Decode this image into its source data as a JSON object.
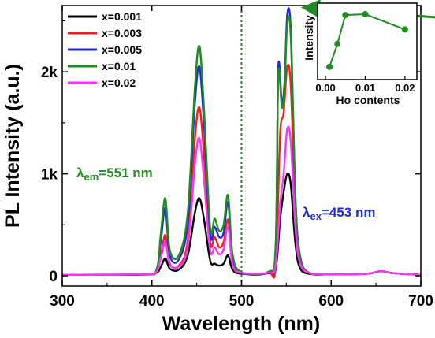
{
  "chart_data": [
    {
      "type": "line",
      "xlabel": "Wavelength (nm)",
      "ylabel": "PL Intensity (a.u.)",
      "xlim": [
        300,
        700
      ],
      "ylim": [
        -100,
        2650
      ],
      "x_ticks": [
        300,
        400,
        500,
        600,
        700
      ],
      "x_tick_labels": [
        "300",
        "400",
        "500",
        "600",
        "700"
      ],
      "y_ticks": [
        0,
        1000,
        2000
      ],
      "y_tick_labels": [
        "0",
        "1k",
        "2k"
      ],
      "divider_x": 500,
      "legend_position": "top-left",
      "annotations": {
        "em": {
          "prefix": "λ",
          "sub": "em",
          "text": "=551 nm",
          "color": "#1e8c1e"
        },
        "ex": {
          "prefix": "λ",
          "sub": "ex",
          "text": "=453 nm",
          "color": "#1c2bd4"
        }
      },
      "series": [
        {
          "name": "x=0.001",
          "color": "#000000",
          "x": [
            300,
            390,
            405,
            410,
            415,
            420,
            430,
            440,
            448,
            453,
            458,
            465,
            470,
            475,
            480,
            485,
            490,
            500,
            530,
            538,
            543,
            547,
            551,
            555,
            560,
            565,
            575,
            600,
            640,
            655,
            670,
            700
          ],
          "y": [
            10,
            12,
            30,
            90,
            170,
            70,
            60,
            200,
            620,
            760,
            560,
            150,
            120,
            100,
            120,
            200,
            60,
            20,
            25,
            60,
            550,
            820,
            1000,
            890,
            320,
            80,
            20,
            15,
            20,
            45,
            25,
            10
          ]
        },
        {
          "name": "x=0.003",
          "color": "#ff1a1a",
          "x": [
            300,
            390,
            405,
            410,
            415,
            420,
            430,
            440,
            448,
            453,
            458,
            465,
            470,
            475,
            480,
            485,
            490,
            500,
            530,
            538,
            543,
            547,
            551,
            555,
            560,
            565,
            575,
            600,
            640,
            655,
            670,
            700
          ],
          "y": [
            10,
            15,
            40,
            200,
            400,
            120,
            100,
            350,
            1350,
            1650,
            1200,
            330,
            380,
            280,
            330,
            550,
            140,
            30,
            30,
            100,
            1380,
            1600,
            2050,
            1850,
            650,
            180,
            30,
            15,
            20,
            45,
            25,
            10
          ]
        },
        {
          "name": "x=0.005",
          "color": "#1c2bd4",
          "x": [
            300,
            390,
            405,
            410,
            415,
            420,
            430,
            440,
            448,
            453,
            458,
            465,
            470,
            475,
            480,
            485,
            490,
            500,
            530,
            538,
            541,
            545,
            548,
            551,
            555,
            560,
            565,
            575,
            600,
            640,
            655,
            670,
            700
          ],
          "y": [
            10,
            15,
            50,
            350,
            660,
            200,
            160,
            520,
            1700,
            2050,
            1500,
            410,
            480,
            380,
            420,
            720,
            190,
            30,
            35,
            250,
            2040,
            1700,
            1900,
            2560,
            2400,
            800,
            210,
            30,
            15,
            20,
            45,
            25,
            10
          ]
        },
        {
          "name": "x=0.01",
          "color": "#1e8c1e",
          "x": [
            300,
            390,
            405,
            410,
            415,
            420,
            430,
            440,
            448,
            453,
            458,
            465,
            470,
            475,
            480,
            485,
            490,
            500,
            530,
            538,
            541,
            545,
            548,
            551,
            555,
            560,
            565,
            575,
            600,
            640,
            655,
            670,
            700
          ],
          "y": [
            10,
            15,
            60,
            420,
            760,
            250,
            200,
            620,
            1850,
            2250,
            1650,
            470,
            560,
            440,
            500,
            790,
            210,
            35,
            40,
            280,
            1980,
            1650,
            1850,
            2480,
            2330,
            780,
            200,
            30,
            15,
            20,
            45,
            25,
            10
          ]
        },
        {
          "name": "x=0.02",
          "color": "#ff33ff",
          "x": [
            300,
            390,
            405,
            410,
            415,
            420,
            430,
            440,
            448,
            453,
            458,
            465,
            470,
            475,
            480,
            485,
            490,
            500,
            530,
            538,
            543,
            547,
            551,
            555,
            560,
            565,
            575,
            600,
            640,
            655,
            670,
            700
          ],
          "y": [
            10,
            15,
            40,
            180,
            330,
            110,
            90,
            280,
            1100,
            1350,
            950,
            250,
            280,
            210,
            260,
            480,
            110,
            30,
            30,
            100,
            700,
            1000,
            1440,
            1300,
            480,
            130,
            30,
            15,
            20,
            45,
            25,
            10
          ]
        }
      ]
    },
    {
      "type": "line",
      "xlabel": "Ho contents",
      "ylabel": "Intensity",
      "xlim": [
        -0.002,
        0.023
      ],
      "ylim": [
        0.2,
        1.1
      ],
      "x_ticks": [
        0.0,
        0.01,
        0.02
      ],
      "x_tick_labels": [
        "0.00",
        "0.01",
        "0.02"
      ],
      "series": [
        {
          "name": "",
          "color": "#1e8c1e",
          "x": [
            0.001,
            0.003,
            0.005,
            0.01,
            0.02
          ],
          "y": [
            0.35,
            0.62,
            0.96,
            0.97,
            0.79
          ]
        }
      ]
    }
  ]
}
